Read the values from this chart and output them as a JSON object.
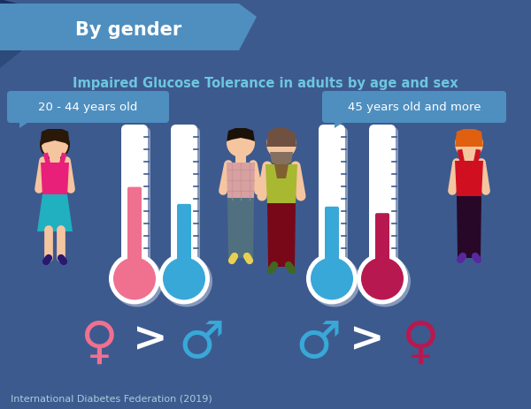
{
  "bg_color": "#3d5a8e",
  "header_color": "#4f8fc0",
  "header_dark": "#2c4a7a",
  "title": "Impaired Glucose Tolerance in adults by age and sex",
  "title_color": "#6ec6e0",
  "header_text": "By gender",
  "header_text_color": "#ffffff",
  "label_young": "20 - 44 years old",
  "label_old": "45 years old and more",
  "label_color": "#ffffff",
  "label_bg": "#4f8fc0",
  "footer": "International Diabetes Federation (2019)",
  "footer_color": "#aaccdd",
  "pink_color": "#f07090",
  "blue_color": "#38a8d8",
  "dark_pink_color": "#b81850",
  "therm_bg": "#ffffff",
  "skin_color": "#f5c5a0",
  "shadow_color": "#d0d8e8"
}
